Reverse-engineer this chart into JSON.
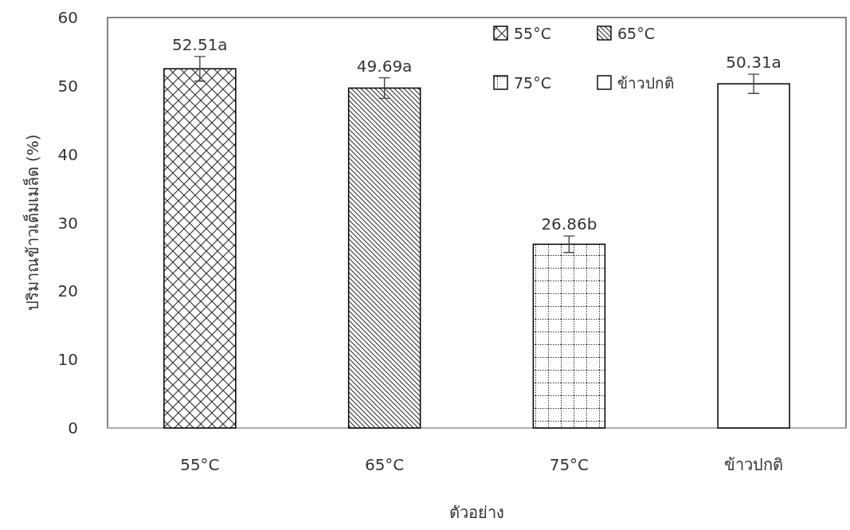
{
  "chart_data": {
    "type": "bar",
    "xlabel": "ตัวอย่าง",
    "ylabel": "ปริมาณข้าวเต็มเมล็ด (%)",
    "categories": [
      "55°C",
      "65°C",
      "75°C",
      "ข้าวปกติ"
    ],
    "series": [
      {
        "name": "55°C",
        "color": "#000000",
        "values": [
          52.51,
          null,
          null,
          null
        ],
        "errors": [
          1.8,
          null,
          null,
          null
        ],
        "value_labels": [
          "52.51a",
          null,
          null,
          null
        ]
      },
      {
        "name": "65°C",
        "color": "#000000",
        "values": [
          null,
          49.69,
          null,
          null
        ],
        "errors": [
          null,
          1.5,
          null,
          null
        ],
        "value_labels": [
          null,
          "49.69a",
          null,
          null
        ]
      },
      {
        "name": "75°C",
        "color": "#000000",
        "values": [
          null,
          null,
          26.86,
          null
        ],
        "errors": [
          null,
          null,
          1.2,
          null
        ],
        "value_labels": [
          null,
          null,
          "26.86b",
          null
        ]
      },
      {
        "name": "ข้าวปกติ",
        "color": "#000000",
        "values": [
          null,
          null,
          null,
          50.31
        ],
        "errors": [
          null,
          null,
          null,
          1.4
        ],
        "value_labels": [
          null,
          null,
          null,
          "50.31a"
        ]
      }
    ],
    "ylim": [
      0,
      60
    ],
    "yticks": [
      0,
      10,
      20,
      30,
      40,
      50,
      60
    ],
    "grid": false,
    "legend": "top right"
  }
}
